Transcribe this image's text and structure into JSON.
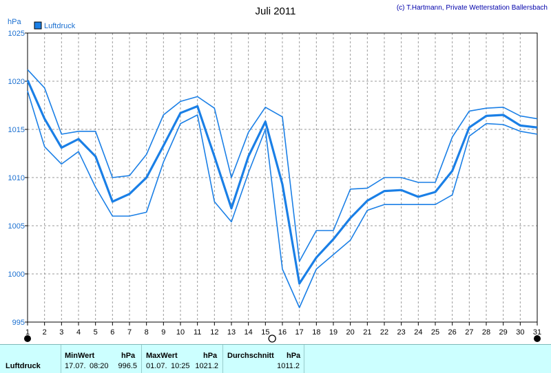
{
  "header": {
    "title": "Juli 2011",
    "copyright": "(c) T.Hartmann, Private Wetterstation Ballersbach"
  },
  "colors": {
    "series": "#1a7fe6",
    "grid": "#999999",
    "stats_bg": "#ccffff"
  },
  "chart_data": {
    "type": "line",
    "title": "Juli 2011",
    "ylabel": "hPa",
    "xlabel": "",
    "ylim": [
      995,
      1025
    ],
    "yticks": [
      995,
      1000,
      1005,
      1010,
      1015,
      1020,
      1025
    ],
    "xlim": [
      1,
      31
    ],
    "x": [
      1,
      2,
      3,
      4,
      5,
      6,
      7,
      8,
      9,
      10,
      11,
      12,
      13,
      14,
      15,
      16,
      17,
      18,
      19,
      20,
      21,
      22,
      23,
      24,
      25,
      26,
      27,
      28,
      29,
      30,
      31
    ],
    "legend": "Luftdruck",
    "legend_position": "top-left",
    "grid": true,
    "series": [
      {
        "name": "Luftdruck",
        "role": "mean",
        "values": [
          1020.1,
          1016.1,
          1013.1,
          1014.0,
          1012.2,
          1007.5,
          1008.3,
          1010.0,
          1013.3,
          1016.7,
          1017.4,
          1012.2,
          1006.8,
          1012.2,
          1015.8,
          1009.3,
          999.0,
          1001.7,
          1003.6,
          1005.8,
          1007.6,
          1008.6,
          1008.7,
          1008.0,
          1008.5,
          1010.7,
          1015.2,
          1016.4,
          1016.5,
          1015.4,
          1015.2
        ]
      },
      {
        "role": "max",
        "values": [
          1021.2,
          1019.3,
          1014.5,
          1014.8,
          1014.8,
          1010.0,
          1010.2,
          1012.4,
          1016.5,
          1017.9,
          1018.4,
          1017.2,
          1010.0,
          1014.7,
          1017.3,
          1016.3,
          1001.3,
          1004.5,
          1004.5,
          1008.8,
          1008.9,
          1010.0,
          1010.0,
          1009.5,
          1009.5,
          1014.2,
          1016.9,
          1017.2,
          1017.3,
          1016.4,
          1016.1
        ]
      },
      {
        "role": "min",
        "values": [
          1019.0,
          1013.2,
          1011.4,
          1012.7,
          1009.0,
          1006.0,
          1006.0,
          1006.4,
          1011.6,
          1015.6,
          1016.5,
          1007.5,
          1005.4,
          1010.5,
          1015.0,
          1000.5,
          996.5,
          1000.5,
          1002.0,
          1003.5,
          1006.6,
          1007.2,
          1007.2,
          1007.2,
          1007.2,
          1008.2,
          1014.3,
          1015.6,
          1015.5,
          1014.8,
          1014.5
        ]
      }
    ],
    "markers": [
      {
        "x": 1,
        "symbol": "filled-circle"
      },
      {
        "x": 15.4,
        "symbol": "open-circle"
      },
      {
        "x": 31,
        "symbol": "filled-circle"
      }
    ]
  },
  "stats": {
    "label": "Luftdruck",
    "min": {
      "title": "MinWert",
      "unit": "hPa",
      "date": "17.07.",
      "time": "08:20",
      "value": "996.5"
    },
    "max": {
      "title": "MaxWert",
      "unit": "hPa",
      "date": "01.07.",
      "time": "10:25",
      "value": "1021.2"
    },
    "avg": {
      "title": "Durchschnitt",
      "unit": "hPa",
      "value": "1011.2"
    }
  }
}
